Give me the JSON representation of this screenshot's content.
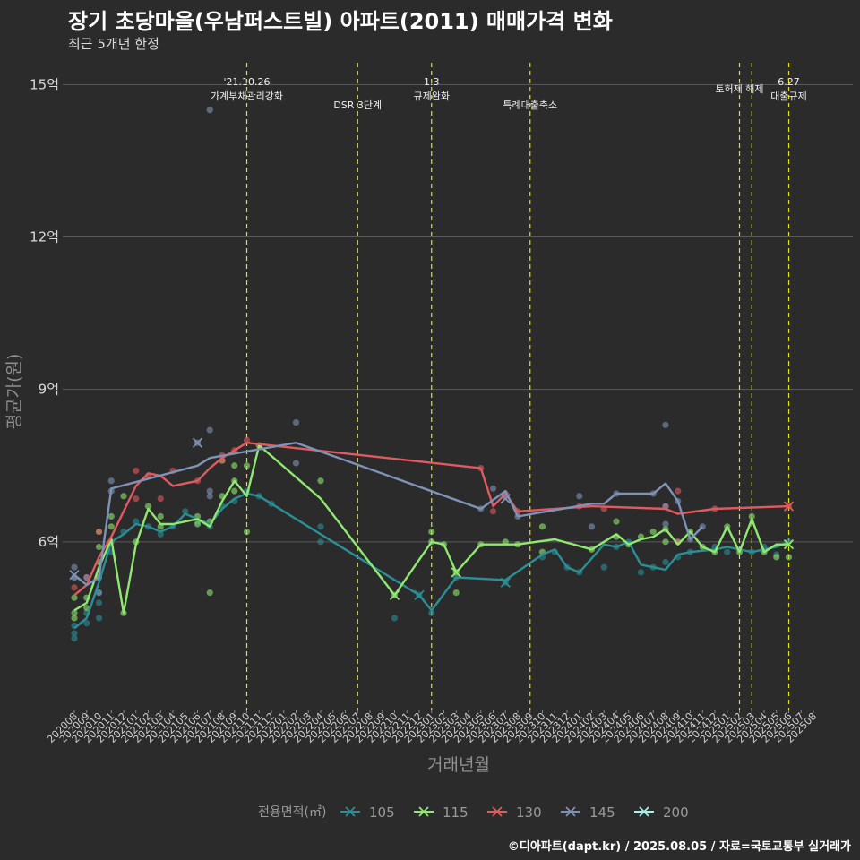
{
  "header": {
    "title": "장기 초당마을(우남퍼스트빌) 아파트(2011) 매매가격 변화",
    "subtitle": "최근 5개년 한정"
  },
  "caption": "©디아파트(dapt.kr) / 2025.08.05 / 자료=국토교통부 실거래가",
  "colors": {
    "background": "#2b2b2b",
    "grid": "#5a5a5a",
    "event_line": "#e6e600",
    "s105": "#2a8f96",
    "s115": "#8fe86f",
    "s130": "#e05a5e",
    "s145": "#7f92b8",
    "s200": "#a6f0e8"
  },
  "chart_data": {
    "type": "line",
    "title": "장기 초당마을(우남퍼스트빌) 아파트(2011) 매매가격 변화",
    "subtitle": "최근 5개년 한정",
    "xlabel": "거래년월",
    "ylabel": "평균가(원)",
    "ylim": [
      2.7,
      15.5
    ],
    "yticks": [
      {
        "value": 6,
        "label": "6억"
      },
      {
        "value": 9,
        "label": "9억"
      },
      {
        "value": 12,
        "label": "12억"
      },
      {
        "value": 15,
        "label": "15억"
      }
    ],
    "x_start": "202008",
    "x_end": "202508",
    "x_labels": [
      "202008",
      "202009",
      "202010",
      "202011",
      "202012",
      "202101",
      "202102",
      "202103",
      "202104",
      "202105",
      "202106",
      "202107",
      "202108",
      "202109",
      "202110",
      "202111",
      "202112",
      "202201",
      "202202",
      "202203",
      "202204",
      "202205",
      "202206",
      "202207",
      "202208",
      "202209",
      "202210",
      "202211",
      "202212",
      "202301",
      "202302",
      "202303",
      "202304",
      "202305",
      "202306",
      "202307",
      "202308",
      "202309",
      "202310",
      "202311",
      "202312",
      "202401",
      "202402",
      "202403",
      "202404",
      "202405",
      "202406",
      "202407",
      "202408",
      "202409",
      "202410",
      "202411",
      "202412",
      "202501",
      "202502",
      "202503",
      "202504",
      "202505",
      "202506",
      "202507",
      "202508"
    ],
    "events": [
      {
        "month": 14,
        "label": "'21.10.26\n가계부채관리강화"
      },
      {
        "month": 23,
        "label": "DSR 3단계"
      },
      {
        "month": 29,
        "label": "1.3\n규제완화"
      },
      {
        "month": 37,
        "label": "특례대출축소"
      },
      {
        "month": 54,
        "label": "토허제 해제"
      },
      {
        "month": 55,
        "label": ""
      },
      {
        "month": 58,
        "label": "6.27\n대출규제"
      }
    ],
    "legend": {
      "title": "전용면적(㎡)",
      "entries": [
        "105",
        "115",
        "130",
        "145",
        "200"
      ]
    },
    "series": [
      {
        "name": "105",
        "line": [
          [
            0,
            4.3
          ],
          [
            1,
            4.5
          ],
          [
            2,
            5.2
          ],
          [
            3,
            6.0
          ],
          [
            4,
            6.15
          ],
          [
            5,
            6.35
          ],
          [
            6,
            6.3
          ],
          [
            7,
            6.2
          ],
          [
            8,
            6.3
          ],
          [
            9,
            6.55
          ],
          [
            10,
            6.45
          ],
          [
            11,
            6.35
          ],
          [
            12,
            6.65
          ],
          [
            13,
            6.85
          ],
          [
            14,
            6.95
          ],
          [
            15,
            6.9
          ],
          [
            16,
            6.75
          ],
          [
            28,
            4.95
          ],
          [
            29,
            4.65
          ],
          [
            31,
            5.3
          ],
          [
            35,
            5.25
          ],
          [
            38,
            5.75
          ],
          [
            39,
            5.85
          ],
          [
            40,
            5.5
          ],
          [
            41,
            5.4
          ],
          [
            43,
            5.95
          ],
          [
            44,
            5.9
          ],
          [
            45,
            6.0
          ],
          [
            46,
            5.55
          ],
          [
            47,
            5.5
          ],
          [
            48,
            5.45
          ],
          [
            49,
            5.75
          ],
          [
            50,
            5.8
          ],
          [
            52,
            5.85
          ],
          [
            53,
            5.9
          ],
          [
            55,
            5.8
          ],
          [
            56,
            5.85
          ],
          [
            57,
            5.9
          ],
          [
            58,
            6.0
          ]
        ],
        "points": [
          [
            0,
            4.1
          ],
          [
            0,
            4.2
          ],
          [
            0,
            4.35
          ],
          [
            0,
            5.3
          ],
          [
            1,
            4.6
          ],
          [
            1,
            4.4
          ],
          [
            2,
            5.0
          ],
          [
            2,
            4.8
          ],
          [
            2,
            4.5
          ],
          [
            3,
            5.8
          ],
          [
            4,
            6.2
          ],
          [
            5,
            6.4
          ],
          [
            6,
            6.3
          ],
          [
            7,
            6.15
          ],
          [
            8,
            6.3
          ],
          [
            9,
            6.6
          ],
          [
            10,
            6.4
          ],
          [
            11,
            6.3
          ],
          [
            12,
            6.7
          ],
          [
            13,
            6.8
          ],
          [
            14,
            7.0
          ],
          [
            15,
            6.9
          ],
          [
            16,
            6.75
          ],
          [
            20,
            6.0
          ],
          [
            20,
            6.3
          ],
          [
            26,
            4.5
          ],
          [
            28,
            4.95
          ],
          [
            29,
            4.6
          ],
          [
            31,
            5.3
          ],
          [
            35,
            5.2
          ],
          [
            38,
            5.7
          ],
          [
            39,
            5.8
          ],
          [
            40,
            5.5
          ],
          [
            41,
            5.4
          ],
          [
            43,
            5.5
          ],
          [
            44,
            5.9
          ],
          [
            45,
            6.0
          ],
          [
            46,
            5.4
          ],
          [
            47,
            5.5
          ],
          [
            48,
            5.6
          ],
          [
            49,
            5.7
          ],
          [
            50,
            5.8
          ],
          [
            52,
            5.9
          ],
          [
            53,
            5.8
          ],
          [
            55,
            5.8
          ],
          [
            56,
            5.9
          ],
          [
            57,
            5.75
          ],
          [
            58,
            6.0
          ]
        ],
        "x_marks": [
          [
            28,
            4.95
          ],
          [
            35,
            5.2
          ]
        ]
      },
      {
        "name": "115",
        "line": [
          [
            0,
            4.65
          ],
          [
            1,
            4.8
          ],
          [
            2,
            5.5
          ],
          [
            3,
            6.05
          ],
          [
            4,
            4.6
          ],
          [
            5,
            5.95
          ],
          [
            6,
            6.65
          ],
          [
            7,
            6.35
          ],
          [
            8,
            6.35
          ],
          [
            10,
            6.45
          ],
          [
            11,
            6.3
          ],
          [
            12,
            6.8
          ],
          [
            13,
            7.2
          ],
          [
            14,
            6.9
          ],
          [
            15,
            7.9
          ],
          [
            20,
            6.85
          ],
          [
            26,
            4.95
          ],
          [
            29,
            6.0
          ],
          [
            30,
            5.95
          ],
          [
            31,
            5.4
          ],
          [
            33,
            5.95
          ],
          [
            36,
            5.95
          ],
          [
            39,
            6.05
          ],
          [
            42,
            5.85
          ],
          [
            44,
            6.15
          ],
          [
            45,
            5.95
          ],
          [
            46,
            6.05
          ],
          [
            47,
            6.1
          ],
          [
            48,
            6.25
          ],
          [
            49,
            5.95
          ],
          [
            50,
            6.2
          ],
          [
            51,
            5.9
          ],
          [
            52,
            5.8
          ],
          [
            53,
            6.3
          ],
          [
            54,
            5.8
          ],
          [
            55,
            6.45
          ],
          [
            56,
            5.8
          ],
          [
            57,
            5.95
          ],
          [
            58,
            5.95
          ]
        ],
        "points": [
          [
            0,
            4.5
          ],
          [
            0,
            4.6
          ],
          [
            0,
            4.9
          ],
          [
            1,
            4.7
          ],
          [
            1,
            4.9
          ],
          [
            2,
            5.3
          ],
          [
            2,
            5.6
          ],
          [
            2,
            5.9
          ],
          [
            2,
            6.2
          ],
          [
            3,
            6.5
          ],
          [
            3,
            6.3
          ],
          [
            4,
            4.6
          ],
          [
            4,
            6.9
          ],
          [
            5,
            6.0
          ],
          [
            6,
            6.7
          ],
          [
            7,
            6.5
          ],
          [
            7,
            6.3
          ],
          [
            10,
            6.35
          ],
          [
            10,
            6.5
          ],
          [
            11,
            5.0
          ],
          [
            11,
            6.4
          ],
          [
            12,
            6.9
          ],
          [
            12,
            7.6
          ],
          [
            13,
            7.0
          ],
          [
            13,
            7.5
          ],
          [
            13,
            7.2
          ],
          [
            14,
            6.2
          ],
          [
            14,
            7.5
          ],
          [
            15,
            7.9
          ],
          [
            20,
            7.2
          ],
          [
            26,
            4.95
          ],
          [
            29,
            6.0
          ],
          [
            29,
            6.2
          ],
          [
            30,
            5.95
          ],
          [
            31,
            5.0
          ],
          [
            31,
            5.4
          ],
          [
            33,
            5.95
          ],
          [
            35,
            6.0
          ],
          [
            36,
            5.95
          ],
          [
            38,
            5.8
          ],
          [
            38,
            6.3
          ],
          [
            42,
            5.85
          ],
          [
            44,
            6.1
          ],
          [
            44,
            6.4
          ],
          [
            45,
            5.95
          ],
          [
            46,
            6.1
          ],
          [
            47,
            6.2
          ],
          [
            48,
            6.0
          ],
          [
            48,
            6.25
          ],
          [
            49,
            6.0
          ],
          [
            50,
            6.2
          ],
          [
            51,
            5.9
          ],
          [
            52,
            5.8
          ],
          [
            53,
            6.3
          ],
          [
            54,
            5.8
          ],
          [
            55,
            6.5
          ],
          [
            56,
            5.8
          ],
          [
            57,
            5.7
          ],
          [
            58,
            5.7
          ]
        ],
        "x_marks": [
          [
            26,
            4.95
          ],
          [
            31,
            5.4
          ],
          [
            58,
            5.95
          ]
        ]
      },
      {
        "name": "130",
        "line": [
          [
            0,
            4.95
          ],
          [
            1,
            5.15
          ],
          [
            2,
            5.7
          ],
          [
            3,
            6.1
          ],
          [
            4,
            6.6
          ],
          [
            5,
            7.1
          ],
          [
            6,
            7.35
          ],
          [
            7,
            7.3
          ],
          [
            8,
            7.1
          ],
          [
            9,
            7.15
          ],
          [
            10,
            7.2
          ],
          [
            11,
            7.45
          ],
          [
            12,
            7.65
          ],
          [
            13,
            7.8
          ],
          [
            14,
            7.95
          ],
          [
            33,
            7.45
          ],
          [
            34,
            6.7
          ],
          [
            35,
            6.95
          ],
          [
            36,
            6.6
          ],
          [
            42,
            6.7
          ],
          [
            48,
            6.65
          ],
          [
            49,
            6.55
          ],
          [
            52,
            6.65
          ],
          [
            58,
            6.7
          ]
        ],
        "points": [
          [
            0,
            5.1
          ],
          [
            1,
            5.3
          ],
          [
            2,
            6.2
          ],
          [
            3,
            6.0
          ],
          [
            5,
            7.4
          ],
          [
            5,
            6.85
          ],
          [
            6,
            7.3
          ],
          [
            7,
            6.85
          ],
          [
            8,
            7.4
          ],
          [
            10,
            7.2
          ],
          [
            12,
            7.7
          ],
          [
            12,
            7.6
          ],
          [
            13,
            7.8
          ],
          [
            14,
            8.0
          ],
          [
            33,
            7.45
          ],
          [
            34,
            6.6
          ],
          [
            35,
            6.95
          ],
          [
            36,
            6.6
          ],
          [
            41,
            6.7
          ],
          [
            43,
            6.65
          ],
          [
            48,
            6.7
          ],
          [
            49,
            7.0
          ],
          [
            49,
            6.0
          ],
          [
            52,
            6.65
          ],
          [
            58,
            6.7
          ]
        ],
        "x_marks": [
          [
            58,
            6.7
          ]
        ]
      },
      {
        "name": "145",
        "line": [
          [
            0,
            5.35
          ],
          [
            1,
            5.15
          ],
          [
            2,
            5.3
          ],
          [
            3,
            7.05
          ],
          [
            10,
            7.5
          ],
          [
            11,
            7.65
          ],
          [
            18,
            7.95
          ],
          [
            33,
            6.65
          ],
          [
            35,
            7.0
          ],
          [
            36,
            6.5
          ],
          [
            42,
            6.75
          ],
          [
            43,
            6.75
          ],
          [
            44,
            6.95
          ],
          [
            47,
            6.95
          ],
          [
            48,
            7.15
          ],
          [
            49,
            6.8
          ],
          [
            50,
            6.05
          ],
          [
            51,
            6.3
          ]
        ],
        "points": [
          [
            0,
            5.5
          ],
          [
            0,
            5.3
          ],
          [
            1,
            5.3
          ],
          [
            2,
            5.0
          ],
          [
            3,
            7.2
          ],
          [
            3,
            7.0
          ],
          [
            10,
            7.95
          ],
          [
            11,
            8.2
          ],
          [
            11,
            7.0
          ],
          [
            11,
            6.9
          ],
          [
            18,
            8.35
          ],
          [
            18,
            7.55
          ],
          [
            33,
            6.65
          ],
          [
            34,
            7.05
          ],
          [
            35,
            6.9
          ],
          [
            36,
            6.5
          ],
          [
            41,
            6.9
          ],
          [
            42,
            6.3
          ],
          [
            44,
            6.95
          ],
          [
            47,
            6.95
          ],
          [
            48,
            8.3
          ],
          [
            48,
            6.7
          ],
          [
            48,
            6.35
          ],
          [
            49,
            6.8
          ],
          [
            50,
            6.05
          ],
          [
            51,
            6.3
          ],
          [
            11,
            14.5
          ]
        ],
        "x_marks": [
          [
            0,
            5.35
          ],
          [
            10,
            7.95
          ],
          [
            35,
            6.85
          ]
        ]
      },
      {
        "name": "200",
        "line": [],
        "points": [],
        "x_marks": []
      }
    ]
  }
}
